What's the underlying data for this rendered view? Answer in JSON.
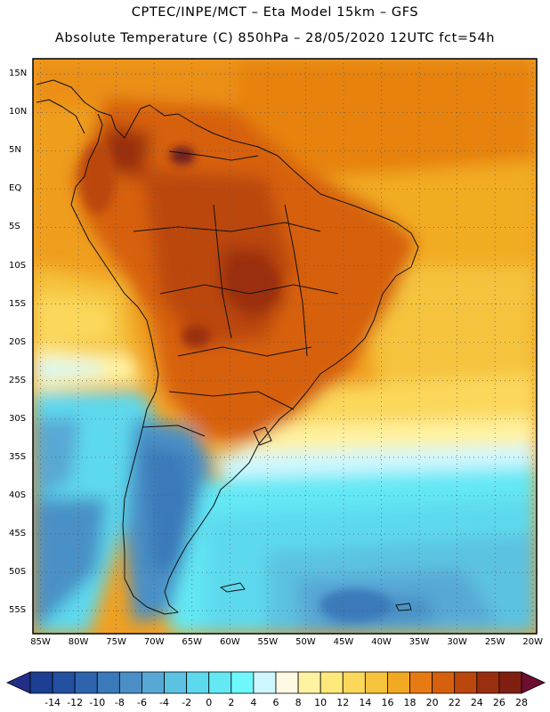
{
  "header": {
    "line1": "CPTEC/INPE/MCT –  Eta Model 15km – GFS",
    "line2": "Absolute Temperature (C) 850hPa – 28/05/2020 12UTC fct=54h"
  },
  "map": {
    "lat_labels": [
      {
        "label": "15N",
        "lat": 15
      },
      {
        "label": "10N",
        "lat": 10
      },
      {
        "label": "5N",
        "lat": 5
      },
      {
        "label": "EQ",
        "lat": 0
      },
      {
        "label": "5S",
        "lat": -5
      },
      {
        "label": "10S",
        "lat": -10
      },
      {
        "label": "15S",
        "lat": -15
      },
      {
        "label": "20S",
        "lat": -20
      },
      {
        "label": "25S",
        "lat": -25
      },
      {
        "label": "30S",
        "lat": -30
      },
      {
        "label": "35S",
        "lat": -35
      },
      {
        "label": "40S",
        "lat": -40
      },
      {
        "label": "45S",
        "lat": -45
      },
      {
        "label": "50S",
        "lat": -50
      },
      {
        "label": "55S",
        "lat": -55
      }
    ],
    "lon_labels": [
      {
        "label": "85W",
        "lon": -85
      },
      {
        "label": "80W",
        "lon": -80
      },
      {
        "label": "75W",
        "lon": -75
      },
      {
        "label": "70W",
        "lon": -70
      },
      {
        "label": "65W",
        "lon": -65
      },
      {
        "label": "60W",
        "lon": -60
      },
      {
        "label": "55W",
        "lon": -55
      },
      {
        "label": "50W",
        "lon": -50
      },
      {
        "label": "45W",
        "lon": -45
      },
      {
        "label": "40W",
        "lon": -40
      },
      {
        "label": "35W",
        "lon": -35
      },
      {
        "label": "30W",
        "lon": -30
      },
      {
        "label": "25W",
        "lon": -25
      },
      {
        "label": "20W",
        "lon": -20
      }
    ],
    "lon_range": [
      -86,
      -19.5
    ],
    "lat_range": [
      -58,
      17
    ]
  },
  "legend": {
    "labels": [
      "-14",
      "-12",
      "-10",
      "-8",
      "-6",
      "-4",
      "-2",
      "0",
      "2",
      "4",
      "6",
      "8",
      "10",
      "12",
      "14",
      "16",
      "18",
      "20",
      "22",
      "24",
      "26",
      "28"
    ],
    "colors": [
      "#1c3f93",
      "#23509f",
      "#2d64ad",
      "#3a79ba",
      "#4a90c6",
      "#58a8d5",
      "#5cc2e2",
      "#5dd9ee",
      "#63e8f4",
      "#6ff8fb",
      "#cff7ff",
      "#fff8e2",
      "#fff2a0",
      "#ffe97a",
      "#fbd85c",
      "#f5c33c",
      "#f2a922",
      "#e87a14",
      "#d7600c",
      "#bb470c",
      "#9a2f0f",
      "#7f1f12"
    ],
    "under_color": "#232e87",
    "over_color": "#6d0e30"
  }
}
